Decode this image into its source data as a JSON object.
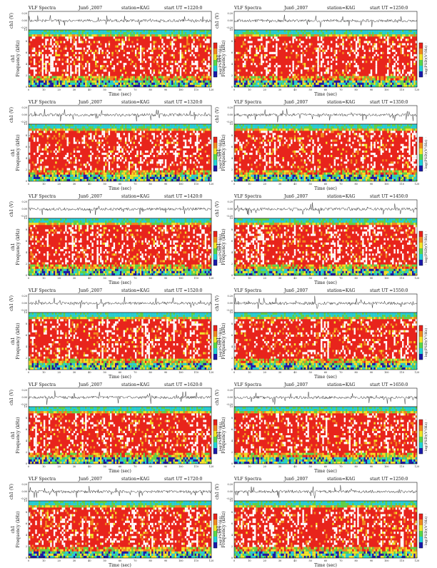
{
  "page_title": "VLF Spectra station=KAG",
  "colors": {
    "blue": "#1a1aa8",
    "cyan": "#22d3d8",
    "green": "#5ad84a",
    "yellow": "#f2e52a",
    "orange": "#f28a1f",
    "red": "#e8241c",
    "white": "#ffffff",
    "axis": "#111111"
  },
  "common": {
    "x_label": "Time  (sec)",
    "y_label_spec": "Frequency  (kHz)",
    "y_label_ch": "ch1",
    "y_label_time": "ch1 (V)",
    "colorbar_label": "log(PSD)(V²/Hz)",
    "colorbar_ticks": [
      "-",
      "-"
    ],
    "x_ticks": [
      "0",
      "10",
      "20",
      "30",
      "40",
      "50",
      "60",
      "70",
      "80",
      "90",
      "100",
      "110",
      "120"
    ],
    "y_ticks_spec": [
      "0",
      "2",
      "4",
      "6",
      "8",
      "10"
    ],
    "y_ticks_time": [
      "-0.20",
      "0.00",
      "0.20"
    ]
  },
  "chart_data": [
    {
      "type": "heatmap",
      "title_left": "VLF Spectra",
      "date": "Jun6 ,2007",
      "station": "station=KAG",
      "start": "start  UT  =1220:0",
      "xlim": [
        0,
        120
      ],
      "ylim": [
        0,
        10
      ],
      "xlabel": "Time  (sec)",
      "ylabel": "Frequency  (kHz)"
    },
    {
      "type": "heatmap",
      "title_left": "VLF Spectra",
      "date": "Jun6 ,2007",
      "station": "station=KAG",
      "start": "start  UT  =1250:0",
      "xlim": [
        0,
        120
      ],
      "ylim": [
        0,
        10
      ],
      "xlabel": "Time  (sec)",
      "ylabel": "Frequency  (kHz)"
    },
    {
      "type": "heatmap",
      "title_left": "VLF Spectra",
      "date": "Jun6 ,2007",
      "station": "station=KAG",
      "start": "start  UT  =1320:0",
      "xlim": [
        0,
        120
      ],
      "ylim": [
        0,
        10
      ],
      "xlabel": "Time  (sec)",
      "ylabel": "Frequency  (kHz)"
    },
    {
      "type": "heatmap",
      "title_left": "VLF Spectra",
      "date": "Jun6 ,2007",
      "station": "station=KAG",
      "start": "start  UT  =1350:0",
      "xlim": [
        0,
        120
      ],
      "ylim": [
        0,
        10
      ],
      "xlabel": "Time  (sec)",
      "ylabel": "Frequency  (kHz)"
    },
    {
      "type": "heatmap",
      "title_left": "VLF Spectra",
      "date": "Jun6 ,2007",
      "station": "station=KAG",
      "start": "start  UT  =1420:0",
      "xlim": [
        0,
        120
      ],
      "ylim": [
        0,
        10
      ],
      "xlabel": "Time  (sec)",
      "ylabel": "Frequency  (kHz)"
    },
    {
      "type": "heatmap",
      "title_left": "VLF Spectra",
      "date": "Jun6 ,2007",
      "station": "station=KAG",
      "start": "start  UT  =1450:0",
      "xlim": [
        0,
        120
      ],
      "ylim": [
        0,
        10
      ],
      "xlabel": "Time  (sec)",
      "ylabel": "Frequency  (kHz)"
    },
    {
      "type": "heatmap",
      "title_left": "VLF Spectra",
      "date": "Jun6 ,2007",
      "station": "station=KAG",
      "start": "start  UT  =1520:0",
      "xlim": [
        0,
        120
      ],
      "ylim": [
        0,
        10
      ],
      "xlabel": "Time  (sec)",
      "ylabel": "Frequency  (kHz)"
    },
    {
      "type": "heatmap",
      "title_left": "VLF Spectra",
      "date": "Jun6 ,2007",
      "station": "station=KAG",
      "start": "start  UT  =1550:0",
      "xlim": [
        0,
        120
      ],
      "ylim": [
        0,
        10
      ],
      "xlabel": "Time  (sec)",
      "ylabel": "Frequency  (kHz)"
    },
    {
      "type": "heatmap",
      "title_left": "VLF Spectra",
      "date": "Jun6 ,2007",
      "station": "station=KAG",
      "start": "start  UT  =1620:0",
      "xlim": [
        0,
        120
      ],
      "ylim": [
        0,
        10
      ],
      "xlabel": "Time  (sec)",
      "ylabel": "Frequency  (kHz)"
    },
    {
      "type": "heatmap",
      "title_left": "VLF Spectra",
      "date": "Jun6 ,2007",
      "station": "station=KAG",
      "start": "start  UT  =1650:0",
      "xlim": [
        0,
        120
      ],
      "ylim": [
        0,
        10
      ],
      "xlabel": "Time  (sec)",
      "ylabel": "Frequency  (kHz)"
    },
    {
      "type": "heatmap",
      "title_left": "VLF Spectra",
      "date": "Jun6 ,2007",
      "station": "station=KAG",
      "start": "start  UT  =1720:0",
      "xlim": [
        0,
        120
      ],
      "ylim": [
        0,
        10
      ],
      "xlabel": "Time  (sec)",
      "ylabel": "Frequency  (kHz)"
    },
    {
      "type": "heatmap",
      "title_left": "VLF Spectra",
      "date": "Jun6 ,2007",
      "station": "station=KAG",
      "start": "start  UT  =1250:0",
      "xlim": [
        0,
        120
      ],
      "ylim": [
        0,
        10
      ],
      "xlabel": "Time  (sec)",
      "ylabel": "Frequency  (kHz)"
    }
  ]
}
